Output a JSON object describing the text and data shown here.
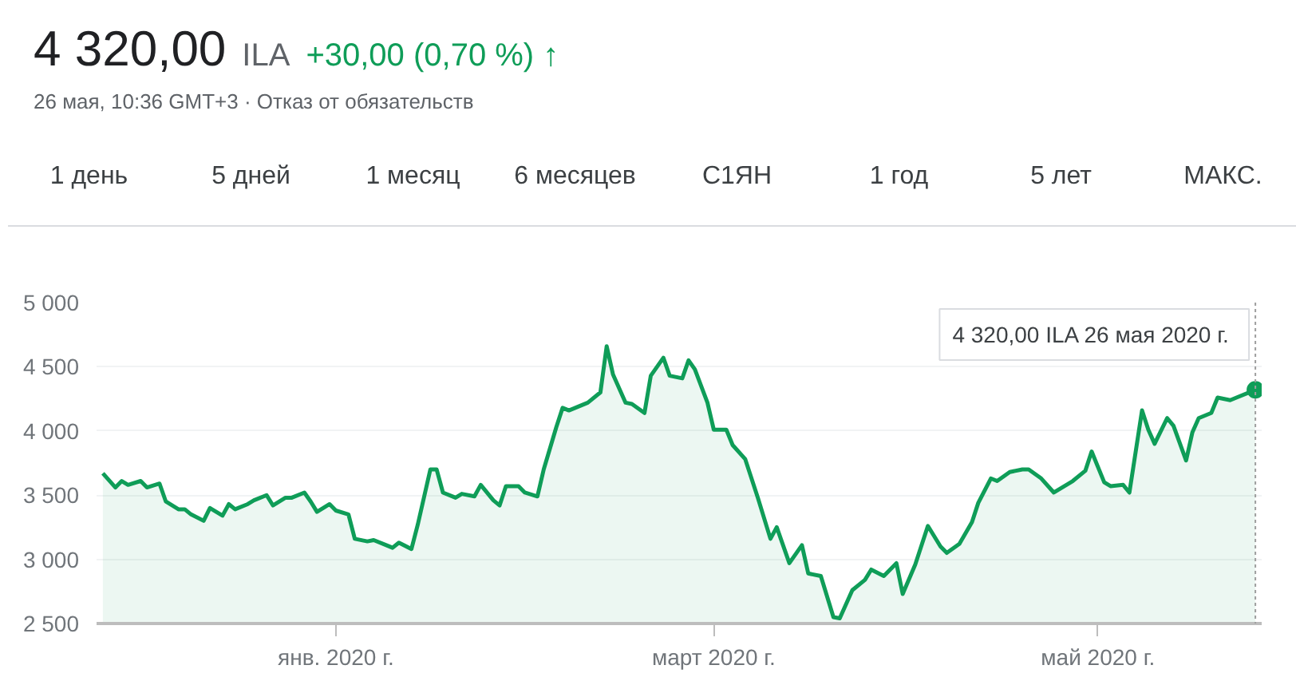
{
  "chart_data": {
    "type": "area",
    "title": "4 320,00",
    "subtitle": "26 мая, 10:36 GMT+3 · Отказ от обязательств",
    "annotations": [
      "ILA",
      "+30,00 (0,70 %) ↑",
      "1 день",
      "5 дней",
      "1 месяц",
      "6 месяцев",
      "С1ЯН",
      "1 год",
      "5 лет",
      "МАКС.",
      {
        "text": "4 320,00 ILA  26 мая 2020 г.",
        "x": "2020-05-26",
        "y": 4320
      }
    ],
    "x": [
      "2019-11-25",
      "2019-11-27",
      "2019-11-28",
      "2019-11-29",
      "2019-12-01",
      "2019-12-02",
      "2019-12-04",
      "2019-12-05",
      "2019-12-07",
      "2019-12-08",
      "2019-12-09",
      "2019-12-11",
      "2019-12-12",
      "2019-12-14",
      "2019-12-15",
      "2019-12-16",
      "2019-12-18",
      "2019-12-19",
      "2019-12-21",
      "2019-12-22",
      "2019-12-24",
      "2019-12-25",
      "2019-12-27",
      "2019-12-28",
      "2019-12-29",
      "2019-12-31",
      "2020-01-01",
      "2020-01-03",
      "2020-01-04",
      "2020-01-06",
      "2020-01-07",
      "2020-01-09",
      "2020-01-10",
      "2020-01-11",
      "2020-01-13",
      "2020-01-14",
      "2020-01-16",
      "2020-01-17",
      "2020-01-18",
      "2020-01-20",
      "2020-01-21",
      "2020-01-23",
      "2020-01-24",
      "2020-01-26",
      "2020-01-27",
      "2020-01-28",
      "2020-01-30",
      "2020-01-31",
      "2020-02-02",
      "2020-02-03",
      "2020-02-05",
      "2020-02-06",
      "2020-02-07",
      "2020-02-09",
      "2020-02-10",
      "2020-02-12",
      "2020-02-13",
      "2020-02-14",
      "2020-02-16",
      "2020-02-17",
      "2020-02-19",
      "2020-02-20",
      "2020-02-22",
      "2020-02-23",
      "2020-02-25",
      "2020-02-26",
      "2020-02-27",
      "2020-02-29",
      "2020-03-01",
      "2020-03-03",
      "2020-03-04",
      "2020-03-06",
      "2020-03-08",
      "2020-03-10",
      "2020-03-11",
      "2020-03-13",
      "2020-03-15",
      "2020-03-16",
      "2020-03-18",
      "2020-03-20",
      "2020-03-21",
      "2020-03-23",
      "2020-03-25",
      "2020-03-26",
      "2020-03-28",
      "2020-03-30",
      "2020-03-31",
      "2020-04-02",
      "2020-04-04",
      "2020-04-06",
      "2020-04-07",
      "2020-04-09",
      "2020-04-11",
      "2020-04-12",
      "2020-04-14",
      "2020-04-15",
      "2020-04-17",
      "2020-04-19",
      "2020-04-20",
      "2020-04-22",
      "2020-04-24",
      "2020-04-25",
      "2020-04-27",
      "2020-04-29",
      "2020-04-30",
      "2020-05-02",
      "2020-05-03",
      "2020-05-05",
      "2020-05-06",
      "2020-05-08",
      "2020-05-09",
      "2020-05-10",
      "2020-05-12",
      "2020-05-13",
      "2020-05-15",
      "2020-05-16",
      "2020-05-17",
      "2020-05-19",
      "2020-05-20",
      "2020-05-22",
      "2020-05-23",
      "2020-05-26"
    ],
    "series": [
      {
        "color": "#0f9d58",
        "values": [
          3670,
          3560,
          3610,
          3580,
          3610,
          3560,
          3590,
          3450,
          3390,
          3390,
          3350,
          3300,
          3400,
          3340,
          3430,
          3390,
          3430,
          3460,
          3500,
          3420,
          3480,
          3480,
          3520,
          3450,
          3370,
          3430,
          3380,
          3350,
          3160,
          3140,
          3150,
          3110,
          3090,
          3130,
          3080,
          3270,
          3700,
          3700,
          3520,
          3480,
          3510,
          3490,
          3580,
          3460,
          3420,
          3570,
          3570,
          3520,
          3490,
          3700,
          4030,
          4180,
          4160,
          4200,
          4220,
          4300,
          4660,
          4440,
          4220,
          4210,
          4140,
          4430,
          4570,
          4430,
          4410,
          4550,
          4480,
          4220,
          4010,
          4010,
          3890,
          3780,
          3480,
          3160,
          3250,
          2970,
          3110,
          2890,
          2870,
          2550,
          2540,
          2760,
          2840,
          2920,
          2870,
          2970,
          2730,
          2960,
          3260,
          3100,
          3050,
          3120,
          3290,
          3440,
          3630,
          3610,
          3680,
          3700,
          3700,
          3630,
          3520,
          3550,
          3610,
          3690,
          3840,
          3600,
          3570,
          3580,
          3520,
          4160,
          4010,
          3900,
          4100,
          4040,
          3770,
          3990,
          4100,
          4140,
          4260,
          4240,
          4260,
          4320
        ]
      }
    ],
    "xlim": [
      "2019-11-24",
      "2020-05-27"
    ],
    "xticks": [
      {
        "value": "2020-01-01",
        "label": "янв. 2020 г."
      },
      {
        "value": "2020-03-01",
        "label": "март 2020 г."
      },
      {
        "value": "2020-05-01",
        "label": "май 2020 г."
      }
    ],
    "ylim": [
      2500,
      5000
    ],
    "yticks": [
      {
        "value": 2500,
        "label": "2 500"
      },
      {
        "value": 3000,
        "label": "3 000"
      },
      {
        "value": 3500,
        "label": "3 500"
      },
      {
        "value": 4000,
        "label": "4 000"
      },
      {
        "value": 4500,
        "label": "4 500"
      },
      {
        "value": 5000,
        "label": "5 000"
      }
    ],
    "ref_lines": [
      {
        "axis": "x",
        "value": "2020-05-26",
        "color": "#9e9e9e",
        "line_style": "dotted"
      }
    ],
    "grid": "y"
  }
}
